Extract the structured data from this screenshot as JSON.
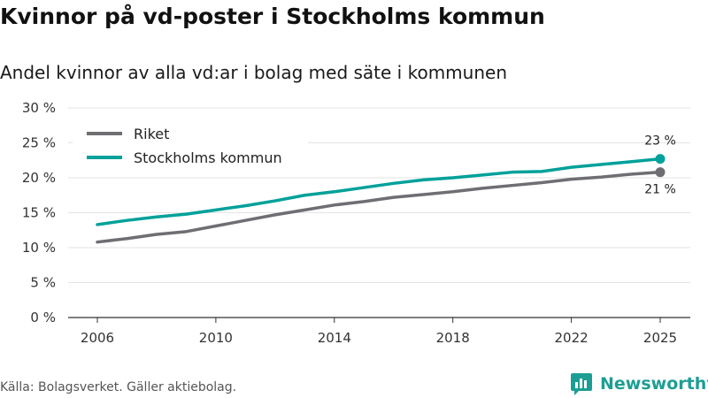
{
  "title": "Kvinnor på vd-poster i Stockholms kommun",
  "subtitle": "Andel kvinnor av alla vd:ar i bolag med säte i kommunen",
  "source": "Källa: Bolagsverket. Gäller aktiebolag.",
  "brand": "Newsworthy",
  "chart_data": {
    "type": "line",
    "title": "Kvinnor på vd-poster i Stockholms kommun",
    "subtitle": "Andel kvinnor av alla vd:ar i bolag med säte i kommunen",
    "xlabel": "",
    "ylabel": "",
    "x": [
      2006,
      2007,
      2008,
      2009,
      2010,
      2011,
      2012,
      2013,
      2014,
      2015,
      2016,
      2017,
      2018,
      2019,
      2020,
      2021,
      2022,
      2023,
      2024,
      2025
    ],
    "xlim": [
      2006,
      2025
    ],
    "x_ticks": [
      2006,
      2010,
      2014,
      2018,
      2022,
      2025
    ],
    "x_tick_labels": [
      "2006",
      "2010",
      "2014",
      "2018",
      "2022",
      "2025"
    ],
    "ylim": [
      0,
      30
    ],
    "y_ticks": [
      0,
      5,
      10,
      15,
      20,
      25,
      30
    ],
    "y_tick_labels": [
      "0 %",
      "5 %",
      "10 %",
      "15 %",
      "20 %",
      "25 %",
      "30 %"
    ],
    "grid": true,
    "legend_position": "top-left",
    "series": [
      {
        "name": "Riket",
        "color": "#6e6e73",
        "values": [
          10.8,
          11.3,
          11.9,
          12.3,
          13.1,
          13.9,
          14.7,
          15.4,
          16.1,
          16.6,
          17.2,
          17.6,
          18.0,
          18.5,
          18.9,
          19.3,
          19.8,
          20.1,
          20.5,
          20.8
        ],
        "end_label": "21 %"
      },
      {
        "name": "Stockholms kommun",
        "color": "#00a19a",
        "values": [
          13.3,
          13.9,
          14.4,
          14.8,
          15.4,
          16.0,
          16.7,
          17.5,
          18.0,
          18.6,
          19.2,
          19.7,
          20.0,
          20.4,
          20.8,
          20.9,
          21.5,
          21.9,
          22.3,
          22.7
        ],
        "end_label": "23 %"
      }
    ]
  }
}
